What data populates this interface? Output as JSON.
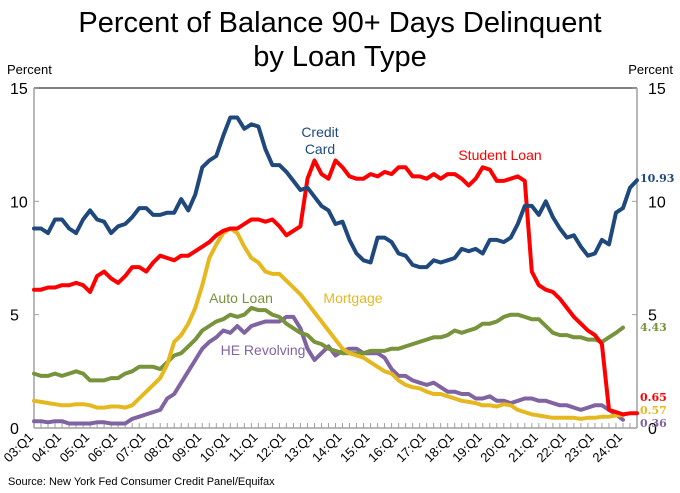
{
  "chart_data": {
    "type": "line",
    "title": "Percent of Balance 90+ Days Delinquent by Loan Type",
    "title_lines": [
      "Percent of Balance 90+ Days Delinquent",
      "by Loan Type"
    ],
    "ylabel_left": "Percent",
    "ylabel_right": "Percent",
    "xlabel": "",
    "ylim": [
      0,
      15
    ],
    "yticks": [
      0,
      5,
      10,
      15
    ],
    "ytick_labels": [
      "0",
      "5",
      "10",
      "15"
    ],
    "x_start": "2003Q1",
    "x_end": "2024Q1",
    "xtick_labels": [
      "03:Q1",
      "04:Q1",
      "05:Q1",
      "06:Q1",
      "07:Q1",
      "08:Q1",
      "09:Q1",
      "10:Q1",
      "11:Q1",
      "12:Q1",
      "13:Q1",
      "14:Q1",
      "15:Q1",
      "16:Q1",
      "17:Q1",
      "18:Q1",
      "19:Q1",
      "20:Q1",
      "21:Q1",
      "22:Q1",
      "23:Q1",
      "24:Q1"
    ],
    "grid": false,
    "legend": "inline-labels",
    "source": "Source: New York Fed Consumer Credit Panel/Equifax",
    "series": [
      {
        "name": "Credit Card",
        "label_lines": [
          "Credit",
          "Card"
        ],
        "color": "#1f497d",
        "end_value_label": "10.93",
        "values": [
          8.8,
          8.8,
          8.6,
          9.2,
          9.2,
          8.8,
          8.6,
          9.2,
          9.6,
          9.2,
          9.1,
          8.6,
          8.9,
          9.0,
          9.3,
          9.7,
          9.7,
          9.4,
          9.4,
          9.5,
          9.5,
          10.1,
          9.6,
          10.3,
          11.5,
          11.8,
          12.0,
          12.9,
          13.7,
          13.7,
          13.2,
          13.4,
          13.3,
          12.3,
          11.6,
          11.6,
          11.3,
          10.9,
          10.5,
          10.6,
          10.2,
          9.8,
          9.6,
          9.0,
          9.1,
          8.3,
          7.7,
          7.4,
          7.3,
          8.4,
          8.4,
          8.2,
          7.7,
          7.6,
          7.2,
          7.1,
          7.1,
          7.4,
          7.3,
          7.4,
          7.5,
          7.9,
          7.8,
          7.9,
          7.7,
          8.3,
          8.3,
          8.2,
          8.4,
          9.0,
          9.8,
          9.8,
          9.4,
          10.0,
          9.3,
          8.8,
          8.4,
          8.5,
          8.0,
          7.6,
          7.7,
          8.3,
          8.1,
          9.5,
          9.7,
          10.6,
          10.93
        ]
      },
      {
        "name": "Student Loan",
        "label_lines": [
          "Student Loan"
        ],
        "color": "#ff0000",
        "end_value_label": "0.65",
        "values": [
          6.1,
          6.1,
          6.2,
          6.2,
          6.3,
          6.3,
          6.4,
          6.3,
          6.0,
          6.7,
          6.9,
          6.6,
          6.4,
          6.7,
          7.1,
          7.1,
          6.9,
          7.3,
          7.6,
          7.5,
          7.4,
          7.6,
          7.6,
          7.8,
          8.0,
          8.2,
          8.5,
          8.7,
          8.8,
          8.8,
          9.0,
          9.2,
          9.2,
          9.1,
          9.2,
          8.9,
          8.5,
          8.7,
          8.9,
          11.0,
          11.8,
          11.2,
          11.0,
          11.8,
          11.5,
          11.1,
          11.0,
          11.0,
          11.2,
          11.1,
          11.3,
          11.2,
          11.5,
          11.5,
          11.1,
          11.1,
          11.0,
          11.2,
          11.0,
          11.2,
          11.2,
          11.0,
          10.7,
          11.0,
          11.5,
          11.4,
          10.9,
          10.9,
          11.0,
          11.1,
          10.9,
          6.9,
          6.3,
          6.1,
          6.0,
          5.7,
          5.3,
          4.9,
          4.6,
          4.3,
          4.1,
          3.7,
          0.8,
          0.7,
          0.6,
          0.65,
          0.65
        ]
      },
      {
        "name": "Mortgage",
        "label_lines": [
          "Mortgage"
        ],
        "color": "#e6b820",
        "end_value_label": "0.57",
        "values": [
          1.2,
          1.15,
          1.1,
          1.05,
          1.0,
          1.0,
          1.05,
          1.05,
          1.0,
          0.9,
          0.9,
          0.95,
          0.95,
          0.9,
          1.0,
          1.3,
          1.6,
          1.9,
          2.2,
          2.8,
          3.8,
          4.1,
          4.6,
          5.3,
          6.3,
          7.5,
          8.1,
          8.6,
          8.8,
          8.6,
          8.0,
          7.5,
          7.3,
          6.9,
          6.8,
          6.8,
          6.5,
          6.2,
          5.9,
          5.5,
          5.1,
          4.7,
          4.3,
          3.9,
          3.5,
          3.3,
          3.2,
          3.1,
          2.9,
          2.7,
          2.5,
          2.4,
          2.1,
          1.9,
          1.8,
          1.75,
          1.6,
          1.5,
          1.5,
          1.4,
          1.3,
          1.2,
          1.15,
          1.1,
          1.0,
          1.0,
          0.95,
          1.05,
          1.0,
          0.8,
          0.7,
          0.6,
          0.55,
          0.5,
          0.45,
          0.45,
          0.45,
          0.45,
          0.4,
          0.45,
          0.45,
          0.5,
          0.5,
          0.55,
          0.57
        ]
      },
      {
        "name": "Auto Loan",
        "label_lines": [
          "Auto Loan"
        ],
        "color": "#77933c",
        "end_value_label": "4.43",
        "values": [
          2.4,
          2.3,
          2.3,
          2.4,
          2.3,
          2.4,
          2.5,
          2.4,
          2.1,
          2.1,
          2.1,
          2.2,
          2.2,
          2.4,
          2.5,
          2.7,
          2.7,
          2.7,
          2.6,
          2.9,
          3.2,
          3.3,
          3.6,
          3.9,
          4.3,
          4.5,
          4.7,
          4.8,
          5.0,
          4.9,
          5.0,
          5.3,
          5.2,
          5.2,
          5.0,
          4.9,
          4.6,
          4.4,
          4.2,
          4.1,
          3.8,
          3.7,
          3.5,
          3.4,
          3.3,
          3.3,
          3.3,
          3.3,
          3.4,
          3.4,
          3.4,
          3.5,
          3.5,
          3.6,
          3.7,
          3.8,
          3.9,
          4.0,
          4.0,
          4.1,
          4.3,
          4.2,
          4.3,
          4.4,
          4.6,
          4.6,
          4.7,
          4.9,
          5.0,
          5.0,
          4.9,
          4.8,
          4.8,
          4.5,
          4.2,
          4.1,
          4.1,
          4.0,
          4.0,
          3.9,
          3.9,
          3.8,
          4.0,
          4.2,
          4.43
        ]
      },
      {
        "name": "HE Revolving",
        "label_lines": [
          "HE Revolving"
        ],
        "color": "#8064a2",
        "end_value_label": "0.36",
        "values": [
          0.3,
          0.3,
          0.25,
          0.3,
          0.3,
          0.2,
          0.2,
          0.2,
          0.2,
          0.25,
          0.25,
          0.2,
          0.2,
          0.2,
          0.4,
          0.5,
          0.6,
          0.7,
          0.8,
          1.3,
          1.5,
          2.0,
          2.5,
          3.0,
          3.5,
          3.8,
          4.0,
          4.3,
          4.2,
          4.5,
          4.2,
          4.5,
          4.6,
          4.7,
          4.7,
          4.7,
          4.9,
          4.9,
          4.4,
          3.5,
          3.0,
          3.3,
          3.6,
          3.2,
          3.4,
          3.5,
          3.5,
          3.3,
          3.3,
          3.3,
          3.1,
          2.6,
          2.3,
          2.3,
          2.1,
          2.0,
          1.9,
          2.0,
          1.8,
          1.6,
          1.6,
          1.5,
          1.5,
          1.3,
          1.3,
          1.4,
          1.2,
          1.2,
          1.1,
          1.2,
          1.3,
          1.3,
          1.2,
          1.2,
          1.1,
          1.0,
          1.0,
          0.9,
          0.8,
          0.9,
          1.0,
          1.0,
          0.8,
          0.6,
          0.36
        ]
      }
    ]
  }
}
